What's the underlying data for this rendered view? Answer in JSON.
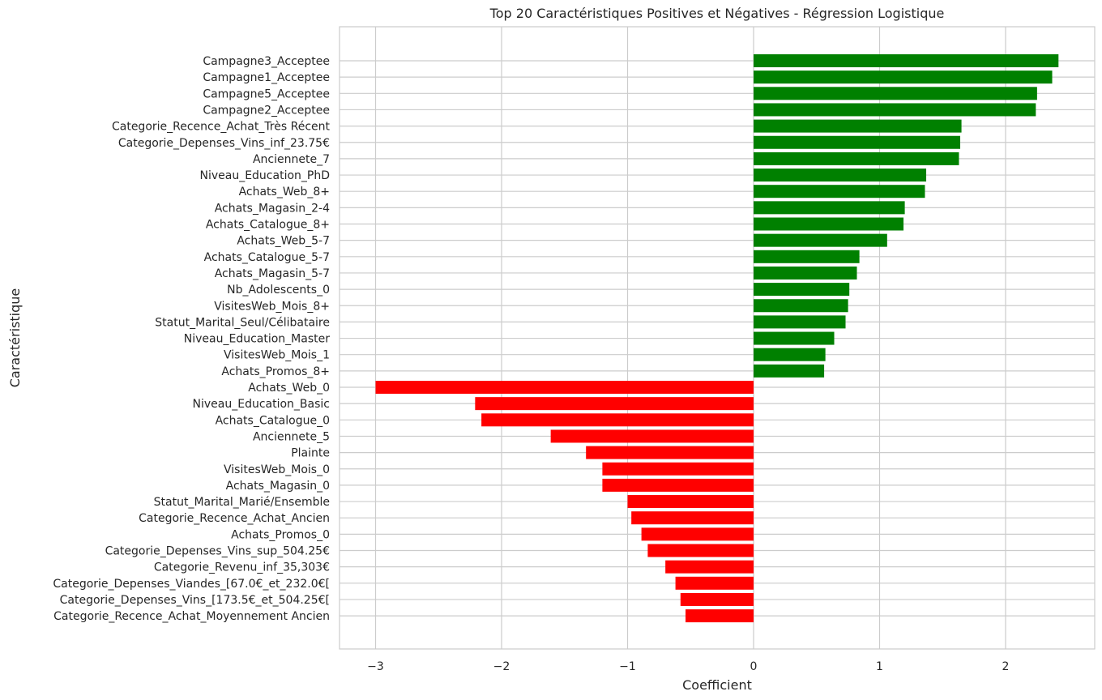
{
  "chart_data": {
    "type": "bar",
    "orientation": "horizontal",
    "title": "Top 20 Caractéristiques Positives et Négatives - Régression Logistique",
    "xlabel": "Coefficient",
    "ylabel": "Caractéristique",
    "xlim": [
      -3.3,
      2.7
    ],
    "xticks": [
      -3,
      -2,
      -1,
      0,
      1,
      2
    ],
    "xtick_labels": [
      "−3",
      "−2",
      "−1",
      "0",
      "1",
      "2"
    ],
    "grid": true,
    "colors": {
      "positive": "#008000",
      "negative": "#ff0000"
    },
    "categories": [
      "Campagne3_Acceptee",
      "Campagne1_Acceptee",
      "Campagne5_Acceptee",
      "Campagne2_Acceptee",
      "Categorie_Recence_Achat_Très Récent",
      "Categorie_Depenses_Vins_inf_23.75€",
      "Anciennete_7",
      "Niveau_Education_PhD",
      "Achats_Web_8+",
      "Achats_Magasin_2-4",
      "Achats_Catalogue_8+",
      "Achats_Web_5-7",
      "Achats_Catalogue_5-7",
      "Achats_Magasin_5-7",
      "Nb_Adolescents_0",
      "VisitesWeb_Mois_8+",
      "Statut_Marital_Seul/Célibataire",
      "Niveau_Education_Master",
      "VisitesWeb_Mois_1",
      "Achats_Promos_8+",
      "Achats_Web_0",
      "Niveau_Education_Basic",
      "Achats_Catalogue_0",
      "Anciennete_5",
      "Plainte",
      "VisitesWeb_Mois_0",
      "Achats_Magasin_0",
      "Statut_Marital_Marié/Ensemble",
      "Categorie_Recence_Achat_Ancien",
      "Achats_Promos_0",
      "Categorie_Depenses_Vins_sup_504.25€",
      "Categorie_Revenu_inf_35,303€",
      "Categorie_Depenses_Viandes_[67.0€_et_232.0€[",
      "Categorie_Depenses_Vins_[173.5€_et_504.25€[",
      "Categorie_Recence_Achat_Moyennement Ancien"
    ],
    "values": [
      2.42,
      2.37,
      2.25,
      2.24,
      1.65,
      1.64,
      1.63,
      1.37,
      1.36,
      1.2,
      1.19,
      1.06,
      0.84,
      0.82,
      0.76,
      0.75,
      0.73,
      0.64,
      0.57,
      0.56,
      -3.0,
      -2.21,
      -2.16,
      -1.61,
      -1.33,
      -1.2,
      -1.2,
      -1.0,
      -0.97,
      -0.89,
      -0.84,
      -0.7,
      -0.62,
      -0.58,
      -0.54
    ]
  }
}
